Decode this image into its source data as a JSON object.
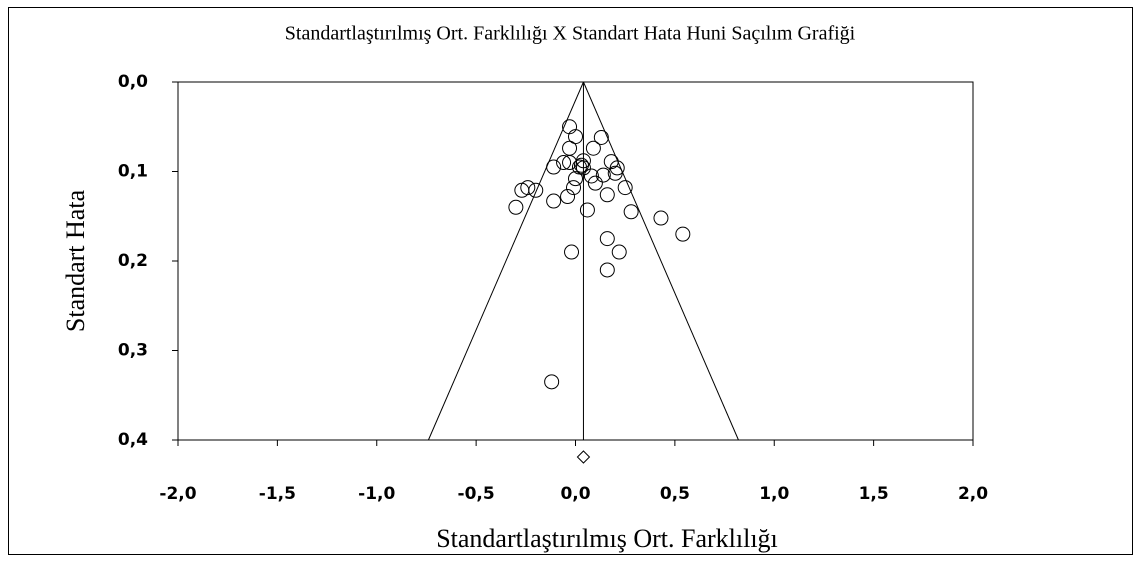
{
  "chart_data": {
    "type": "scatter",
    "title": "Standartlaştırılmış Ort. Farklılığı X Standart Hata Huni Saçılım Grafiği",
    "x_label": "Standartlaştırılmış Ort. Farklılığı",
    "y_label": "Standart Hata",
    "xlim": [
      -2,
      2
    ],
    "ylim": [
      0,
      0.4
    ],
    "y_inverted": true,
    "xticks": [
      {
        "value": -2,
        "label": "-2,0"
      },
      {
        "value": -1.5,
        "label": "-1,5"
      },
      {
        "value": -1,
        "label": "-1,0"
      },
      {
        "value": -0.5,
        "label": "-0,5"
      },
      {
        "value": 0,
        "label": "0,0"
      },
      {
        "value": 0.5,
        "label": "0,5"
      },
      {
        "value": 1,
        "label": "1,0"
      },
      {
        "value": 1.5,
        "label": "1,5"
      },
      {
        "value": 2,
        "label": "2,0"
      }
    ],
    "yticks": [
      {
        "value": 0,
        "label": "0,0"
      },
      {
        "value": 0.1,
        "label": "0,1"
      },
      {
        "value": 0.2,
        "label": "0,2"
      },
      {
        "value": 0.3,
        "label": "0,3"
      },
      {
        "value": 0.4,
        "label": "0,4"
      }
    ],
    "x": [
      -0.03,
      0.0,
      0.13,
      -0.03,
      0.09,
      -0.11,
      -0.06,
      -0.03,
      0.04,
      0.03,
      0.04,
      0.02,
      0.18,
      0.21,
      0.2,
      0.14,
      0.08,
      0.0,
      -0.01,
      0.1,
      0.25,
      -0.27,
      -0.24,
      -0.2,
      0.16,
      -0.04,
      -0.11,
      -0.3,
      0.06,
      0.28,
      0.43,
      0.54,
      0.16,
      0.22,
      -0.02,
      0.16,
      -0.12
    ],
    "values": [
      0.05,
      0.061,
      0.062,
      0.074,
      0.074,
      0.095,
      0.09,
      0.09,
      0.088,
      0.093,
      0.096,
      0.095,
      0.089,
      0.096,
      0.102,
      0.104,
      0.105,
      0.108,
      0.118,
      0.113,
      0.118,
      0.121,
      0.118,
      0.121,
      0.126,
      0.128,
      0.133,
      0.14,
      0.143,
      0.145,
      0.152,
      0.17,
      0.175,
      0.19,
      0.19,
      0.21,
      0.335
    ],
    "summary_x": 0.04,
    "funnel_bottom_x": [
      -0.74,
      0.82
    ],
    "summary_diamond": {
      "x": 0.04,
      "y": 0.419
    }
  }
}
